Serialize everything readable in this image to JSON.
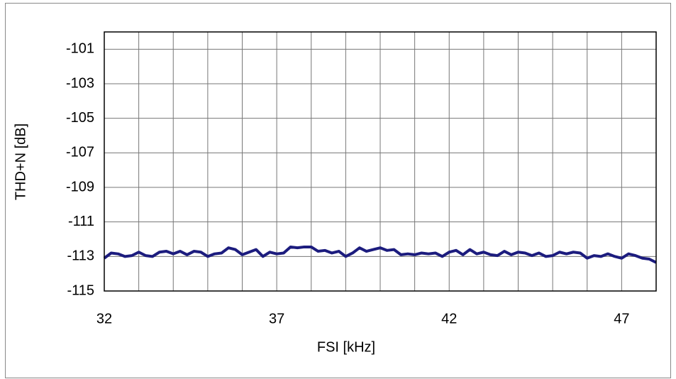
{
  "chart_data": {
    "type": "line",
    "xlabel": "FSI [kHz]",
    "ylabel": "THD+N [dB]",
    "x": [
      32.0,
      32.2,
      32.4,
      32.6,
      32.8,
      33.0,
      33.2,
      33.4,
      33.6,
      33.8,
      34.0,
      34.2,
      34.4,
      34.6,
      34.8,
      35.0,
      35.2,
      35.4,
      35.6,
      35.8,
      36.0,
      36.2,
      36.4,
      36.6,
      36.8,
      37.0,
      37.2,
      37.4,
      37.6,
      37.8,
      38.0,
      38.2,
      38.4,
      38.6,
      38.8,
      39.0,
      39.2,
      39.4,
      39.6,
      39.8,
      40.0,
      40.2,
      40.4,
      40.6,
      40.8,
      41.0,
      41.2,
      41.4,
      41.6,
      41.8,
      42.0,
      42.2,
      42.4,
      42.6,
      42.8,
      43.0,
      43.2,
      43.4,
      43.6,
      43.8,
      44.0,
      44.2,
      44.4,
      44.6,
      44.8,
      45.0,
      45.2,
      45.4,
      45.6,
      45.8,
      46.0,
      46.2,
      46.4,
      46.6,
      46.8,
      47.0,
      47.2,
      47.4,
      47.6,
      47.8,
      48.0
    ],
    "series": [
      {
        "color": "#1c1c7e",
        "values": [
          -113.1,
          -112.8,
          -112.85,
          -113.0,
          -112.95,
          -112.75,
          -112.95,
          -113.0,
          -112.75,
          -112.7,
          -112.85,
          -112.7,
          -112.9,
          -112.7,
          -112.75,
          -113.0,
          -112.85,
          -112.8,
          -112.5,
          -112.6,
          -112.9,
          -112.75,
          -112.6,
          -113.0,
          -112.75,
          -112.85,
          -112.8,
          -112.45,
          -112.5,
          -112.45,
          -112.45,
          -112.7,
          -112.65,
          -112.8,
          -112.7,
          -113.0,
          -112.8,
          -112.5,
          -112.7,
          -112.6,
          -112.5,
          -112.65,
          -112.6,
          -112.9,
          -112.85,
          -112.9,
          -112.8,
          -112.85,
          -112.8,
          -113.0,
          -112.75,
          -112.65,
          -112.9,
          -112.6,
          -112.85,
          -112.75,
          -112.9,
          -112.95,
          -112.7,
          -112.9,
          -112.75,
          -112.8,
          -112.95,
          -112.8,
          -113.0,
          -112.95,
          -112.75,
          -112.85,
          -112.75,
          -112.8,
          -113.1,
          -112.95,
          -113.0,
          -112.85,
          -113.0,
          -113.1,
          -112.85,
          -112.95,
          -113.1,
          -113.15,
          -113.35
        ]
      }
    ],
    "xlim": [
      32,
      48
    ],
    "xticks": [
      32,
      37,
      42,
      47
    ],
    "xgrid": [
      33,
      34,
      35,
      36,
      37,
      38,
      39,
      40,
      41,
      42,
      43,
      44,
      45,
      46,
      47
    ],
    "ylim": [
      -115,
      -100
    ],
    "yticks": [
      -115,
      -113,
      -111,
      -109,
      -107,
      -105,
      -103,
      -101
    ],
    "grid": true
  }
}
